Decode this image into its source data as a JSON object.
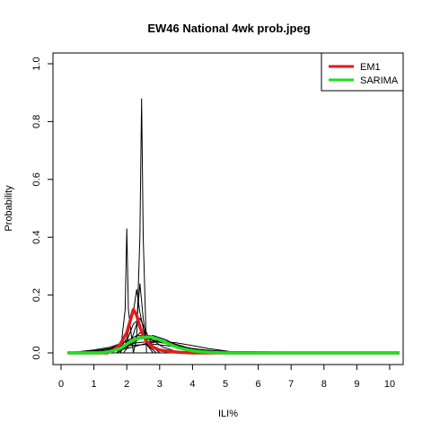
{
  "chart_data": {
    "type": "line",
    "title": "EW46 National 4wk prob.jpeg",
    "xlabel": "ILI%",
    "ylabel": "Probability",
    "xlim": [
      0,
      10.3
    ],
    "ylim": [
      -0.04,
      1.04
    ],
    "x_ticks": [
      "0",
      "1",
      "2",
      "3",
      "4",
      "5",
      "6",
      "7",
      "8",
      "9",
      "10"
    ],
    "y_ticks": [
      "0.0",
      "0.2",
      "0.4",
      "0.6",
      "0.8",
      "1.0"
    ],
    "grid": false,
    "legend_position": "top-right",
    "series": [
      {
        "name": "EM1",
        "color": "#e41a1c",
        "x": [
          0.2,
          1.4,
          1.6,
          1.8,
          2.0,
          2.1,
          2.2,
          2.3,
          2.4,
          2.5,
          2.6,
          2.8,
          3.0,
          3.3,
          3.6,
          4.0,
          4.4,
          10.3
        ],
        "y": [
          0.0,
          0.0,
          0.01,
          0.03,
          0.07,
          0.11,
          0.15,
          0.13,
          0.09,
          0.06,
          0.04,
          0.02,
          0.01,
          0.005,
          0.002,
          0.0,
          0.0,
          0.0
        ]
      },
      {
        "name": "SARIMA",
        "color": "#22dd22",
        "x": [
          0.2,
          1.2,
          1.5,
          1.8,
          2.0,
          2.2,
          2.4,
          2.6,
          2.8,
          3.0,
          3.2,
          3.4,
          3.6,
          4.0,
          4.5,
          5.0,
          10.3
        ],
        "y": [
          0.0,
          0.0,
          0.005,
          0.015,
          0.03,
          0.045,
          0.052,
          0.055,
          0.053,
          0.045,
          0.035,
          0.025,
          0.017,
          0.007,
          0.002,
          0.0,
          0.0
        ]
      }
    ],
    "other_models": [
      {
        "x": [
          0.2,
          2.2,
          2.3,
          2.4,
          2.45,
          2.5,
          2.6,
          10.3
        ],
        "y": [
          0,
          0,
          0.05,
          0.4,
          0.88,
          0.4,
          0,
          0
        ]
      },
      {
        "x": [
          0.2,
          1.8,
          1.95,
          2.0,
          2.05,
          2.2,
          10.3
        ],
        "y": [
          0,
          0,
          0.15,
          0.43,
          0.15,
          0,
          0
        ]
      },
      {
        "x": [
          0.2,
          1.7,
          2.0,
          2.2,
          2.3,
          2.4,
          2.6,
          2.9,
          10.3
        ],
        "y": [
          0,
          0,
          0.05,
          0.14,
          0.22,
          0.14,
          0.03,
          0,
          0
        ]
      },
      {
        "x": [
          0.2,
          1.9,
          2.1,
          2.3,
          2.4,
          2.5,
          2.6,
          2.8,
          10.3
        ],
        "y": [
          0,
          0,
          0.03,
          0.1,
          0.24,
          0.12,
          0.03,
          0,
          0
        ]
      },
      {
        "x": [
          0.2,
          1.8,
          2.0,
          2.2,
          2.4,
          2.6,
          2.8,
          3.0,
          10.3
        ],
        "y": [
          0,
          0,
          0.04,
          0.1,
          0.12,
          0.07,
          0.02,
          0,
          0
        ]
      },
      {
        "x": [
          0.2,
          1.0,
          1.5,
          2.0,
          2.5,
          3.0,
          3.5,
          4.0,
          4.5,
          10.3
        ],
        "y": [
          0,
          0.01,
          0.02,
          0.04,
          0.05,
          0.04,
          0.02,
          0.01,
          0,
          0
        ]
      },
      {
        "x": [
          0.2,
          1.2,
          1.8,
          2.3,
          2.8,
          3.3,
          4.0,
          4.6,
          10.3
        ],
        "y": [
          0,
          0.005,
          0.02,
          0.035,
          0.04,
          0.03,
          0.015,
          0.005,
          0
        ]
      },
      {
        "x": [
          0.2,
          1.5,
          2.0,
          2.5,
          3.0,
          3.5,
          4.0,
          4.5,
          5.0,
          5.4,
          10.3
        ],
        "y": [
          0,
          0.005,
          0.015,
          0.03,
          0.04,
          0.035,
          0.025,
          0.015,
          0.007,
          0,
          0
        ]
      },
      {
        "x": [
          0.2,
          1.4,
          1.9,
          2.3,
          2.7,
          3.2,
          3.8,
          4.4,
          10.3
        ],
        "y": [
          0,
          0.01,
          0.035,
          0.06,
          0.06,
          0.04,
          0.02,
          0.005,
          0
        ]
      },
      {
        "x": [
          0.2,
          1.6,
          2.0,
          2.4,
          2.8,
          3.2,
          3.6,
          4.0,
          10.3
        ],
        "y": [
          0,
          0.005,
          0.02,
          0.05,
          0.06,
          0.045,
          0.02,
          0.005,
          0
        ]
      },
      {
        "x": [
          0.2,
          1.7,
          2.1,
          2.4,
          2.7,
          3.1,
          3.5,
          10.3
        ],
        "y": [
          0,
          0,
          0.03,
          0.07,
          0.05,
          0.02,
          0.005,
          0
        ]
      },
      {
        "x": [
          0.2,
          1.2,
          2.0,
          2.8,
          3.6,
          4.4,
          5.2,
          10.3
        ],
        "y": [
          0,
          0.01,
          0.025,
          0.03,
          0.02,
          0.01,
          0.003,
          0
        ]
      }
    ]
  }
}
